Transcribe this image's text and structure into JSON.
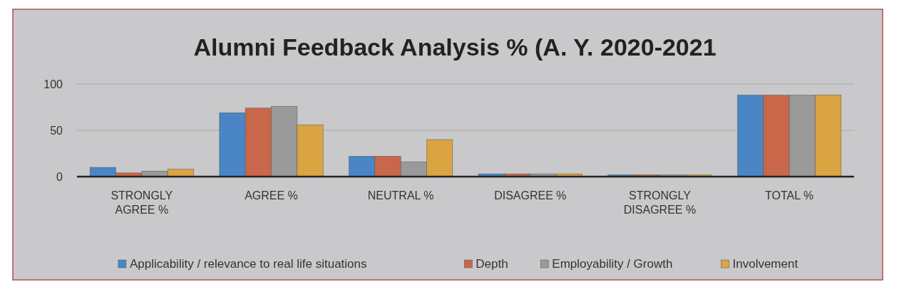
{
  "chart_data": {
    "type": "bar",
    "title": "Alumni Feedback Analysis % (A. Y. 2020-2021",
    "categories": [
      "STRONGLY AGREE %",
      "AGREE %",
      "NEUTRAL %",
      "DISAGREE %",
      "STRONGLY DISAGREE %",
      "TOTAL %"
    ],
    "series": [
      {
        "name": "Applicability / relevance to real life situations",
        "color": "#4a86c5",
        "values": [
          10,
          69,
          22,
          3,
          2,
          88
        ]
      },
      {
        "name": "Depth",
        "color": "#c9674a",
        "values": [
          4,
          74,
          22,
          3,
          2,
          88
        ]
      },
      {
        "name": "Employability / Growth",
        "color": "#9a9a9a",
        "values": [
          6,
          76,
          16,
          3,
          2,
          88
        ]
      },
      {
        "name": "Involvement",
        "color": "#d9a441",
        "values": [
          8,
          56,
          40,
          3,
          2,
          88
        ]
      }
    ],
    "ylim": [
      0,
      100
    ],
    "yticks": [
      0,
      50,
      100
    ],
    "grid": "y",
    "legend": "bottom"
  }
}
